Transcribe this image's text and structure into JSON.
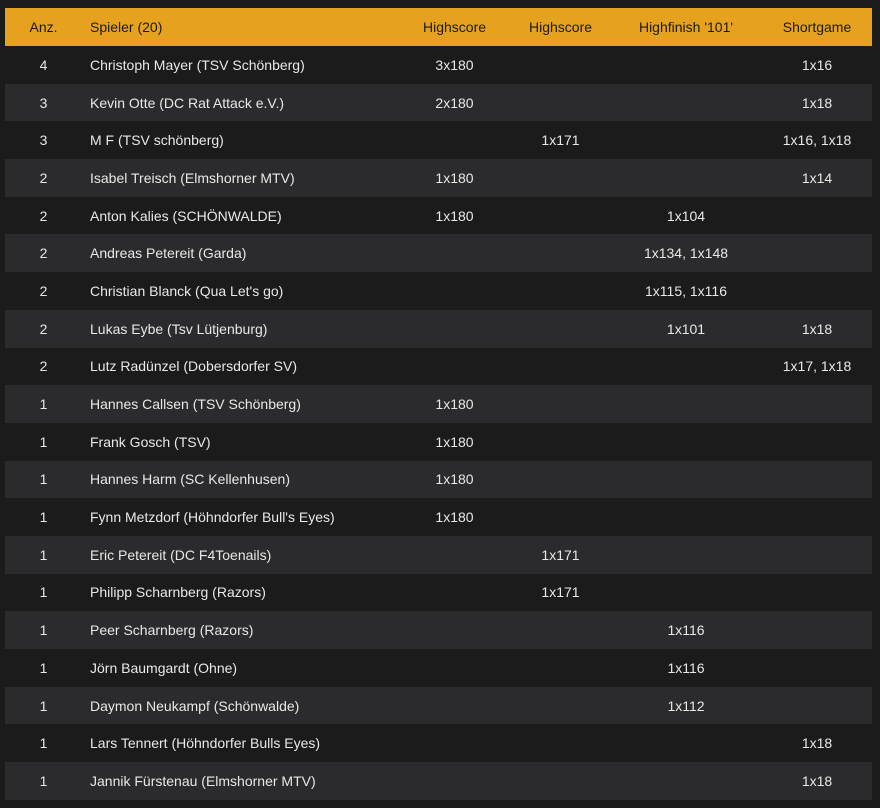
{
  "headers": {
    "anz": "Anz.",
    "spieler": "Spieler (20)",
    "highscore1": "Highscore",
    "highscore2": "Highscore",
    "highfinish": "Highfinish '101'",
    "shortgame": "Shortgame"
  },
  "rows": [
    {
      "anz": "4",
      "name": "Christoph Mayer (TSV Schönberg)",
      "hs1": "3x180",
      "hs2": "",
      "hf": "",
      "sg": "1x16"
    },
    {
      "anz": "3",
      "name": "Kevin Otte (DC Rat Attack e.V.)",
      "hs1": "2x180",
      "hs2": "",
      "hf": "",
      "sg": "1x18"
    },
    {
      "anz": "3",
      "name": "M F (TSV schönberg)",
      "hs1": "",
      "hs2": "1x171",
      "hf": "",
      "sg": "1x16, 1x18"
    },
    {
      "anz": "2",
      "name": "Isabel Treisch (Elmshorner MTV)",
      "hs1": "1x180",
      "hs2": "",
      "hf": "",
      "sg": "1x14"
    },
    {
      "anz": "2",
      "name": "Anton Kalies (SCHÖNWALDE)",
      "hs1": "1x180",
      "hs2": "",
      "hf": "1x104",
      "sg": ""
    },
    {
      "anz": "2",
      "name": "Andreas Petereit (Garda)",
      "hs1": "",
      "hs2": "",
      "hf": "1x134, 1x148",
      "sg": ""
    },
    {
      "anz": "2",
      "name": "Christian Blanck (Qua Let's go)",
      "hs1": "",
      "hs2": "",
      "hf": "1x115, 1x116",
      "sg": ""
    },
    {
      "anz": "2",
      "name": "Lukas Eybe (Tsv Lütjenburg)",
      "hs1": "",
      "hs2": "",
      "hf": "1x101",
      "sg": "1x18"
    },
    {
      "anz": "2",
      "name": "Lutz Radünzel (Dobersdorfer SV)",
      "hs1": "",
      "hs2": "",
      "hf": "",
      "sg": "1x17, 1x18"
    },
    {
      "anz": "1",
      "name": "Hannes Callsen (TSV Schönberg)",
      "hs1": "1x180",
      "hs2": "",
      "hf": "",
      "sg": ""
    },
    {
      "anz": "1",
      "name": "Frank Gosch (TSV)",
      "hs1": "1x180",
      "hs2": "",
      "hf": "",
      "sg": ""
    },
    {
      "anz": "1",
      "name": "Hannes Harm (SC Kellenhusen)",
      "hs1": "1x180",
      "hs2": "",
      "hf": "",
      "sg": ""
    },
    {
      "anz": "1",
      "name": "Fynn Metzdorf (Höhndorfer Bull's Eyes)",
      "hs1": "1x180",
      "hs2": "",
      "hf": "",
      "sg": ""
    },
    {
      "anz": "1",
      "name": "Eric Petereit (DC F4Toenails)",
      "hs1": "",
      "hs2": "1x171",
      "hf": "",
      "sg": ""
    },
    {
      "anz": "1",
      "name": "Philipp Scharnberg (Razors)",
      "hs1": "",
      "hs2": "1x171",
      "hf": "",
      "sg": ""
    },
    {
      "anz": "1",
      "name": "Peer Scharnberg (Razors)",
      "hs1": "",
      "hs2": "",
      "hf": "1x116",
      "sg": ""
    },
    {
      "anz": "1",
      "name": "Jörn Baumgardt (Ohne)",
      "hs1": "",
      "hs2": "",
      "hf": "1x116",
      "sg": ""
    },
    {
      "anz": "1",
      "name": "Daymon Neukampf (Schönwalde)",
      "hs1": "",
      "hs2": "",
      "hf": "1x112",
      "sg": ""
    },
    {
      "anz": "1",
      "name": "Lars Tennert (Höhndorfer Bulls Eyes)",
      "hs1": "",
      "hs2": "",
      "hf": "",
      "sg": "1x18"
    },
    {
      "anz": "1",
      "name": "Jannik Fürstenau (Elmshorner MTV)",
      "hs1": "",
      "hs2": "",
      "hf": "",
      "sg": "1x18"
    }
  ],
  "colors": {
    "header_bg": "#e6a21e",
    "row_dark": "#1b1b1b",
    "row_light": "#2b2b2d",
    "text": "#e8e8e8"
  }
}
